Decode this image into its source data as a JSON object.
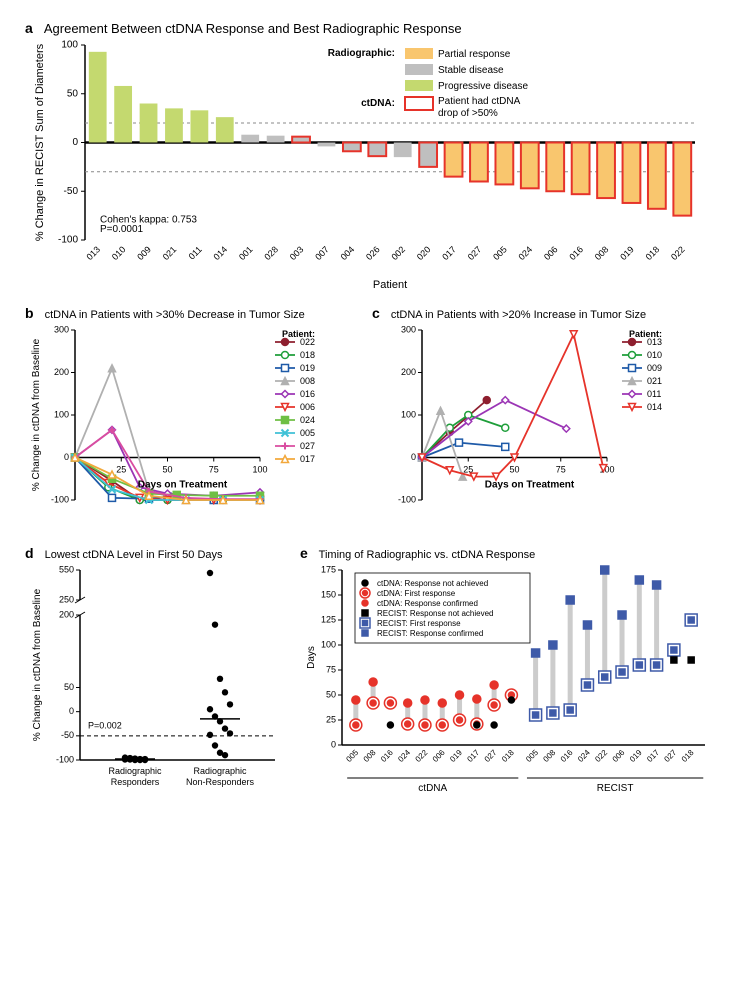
{
  "panel_a": {
    "type": "bar",
    "label": "a",
    "title": "Agreement Between ctDNA Response and Best Radiographic Response",
    "ylabel": "% Change in RECIST Sum of Diameters",
    "xlabel": "Patient",
    "ylim": [
      -100,
      100
    ],
    "ytick_step": 50,
    "ref_lines": [
      20,
      -30
    ],
    "ref_line_color": "#888888",
    "ref_line_dash": "3,3",
    "legend_title_radiographic": "Radiographic:",
    "legend_title_ctdna": "ctDNA:",
    "legend_items": [
      {
        "label": "Partial response",
        "color": "#f9c66e",
        "type": "fill"
      },
      {
        "label": "Stable disease",
        "color": "#bfbfbf",
        "type": "fill"
      },
      {
        "label": "Progressive disease",
        "color": "#c4d96f",
        "type": "fill"
      },
      {
        "label": "Patient had ctDNA drop of >50%",
        "color": "#ffffff",
        "stroke": "#e6332a",
        "type": "outline"
      }
    ],
    "stats_text_1": "Cohen's kappa: 0.753",
    "stats_text_2": "P=0.0001",
    "bars": [
      {
        "patient": "013",
        "value": 93,
        "color": "#c4d96f",
        "ctdna": false
      },
      {
        "patient": "010",
        "value": 58,
        "color": "#c4d96f",
        "ctdna": false
      },
      {
        "patient": "009",
        "value": 40,
        "color": "#c4d96f",
        "ctdna": false
      },
      {
        "patient": "021",
        "value": 35,
        "color": "#c4d96f",
        "ctdna": false
      },
      {
        "patient": "011",
        "value": 33,
        "color": "#c4d96f",
        "ctdna": false
      },
      {
        "patient": "014",
        "value": 26,
        "color": "#c4d96f",
        "ctdna": false
      },
      {
        "patient": "001",
        "value": 8,
        "color": "#bfbfbf",
        "ctdna": false
      },
      {
        "patient": "028",
        "value": 7,
        "color": "#bfbfbf",
        "ctdna": false
      },
      {
        "patient": "003",
        "value": 6,
        "color": "#bfbfbf",
        "ctdna": true
      },
      {
        "patient": "007",
        "value": -4,
        "color": "#bfbfbf",
        "ctdna": false
      },
      {
        "patient": "004",
        "value": -9,
        "color": "#bfbfbf",
        "ctdna": true
      },
      {
        "patient": "026",
        "value": -14,
        "color": "#bfbfbf",
        "ctdna": true
      },
      {
        "patient": "002",
        "value": -15,
        "color": "#bfbfbf",
        "ctdna": false
      },
      {
        "patient": "020",
        "value": -25,
        "color": "#bfbfbf",
        "ctdna": true
      },
      {
        "patient": "017",
        "value": -35,
        "color": "#f9c66e",
        "ctdna": true
      },
      {
        "patient": "027",
        "value": -40,
        "color": "#f9c66e",
        "ctdna": true
      },
      {
        "patient": "005",
        "value": -43,
        "color": "#f9c66e",
        "ctdna": true
      },
      {
        "patient": "024",
        "value": -47,
        "color": "#f9c66e",
        "ctdna": true
      },
      {
        "patient": "006",
        "value": -50,
        "color": "#f9c66e",
        "ctdna": true
      },
      {
        "patient": "016",
        "value": -53,
        "color": "#f9c66e",
        "ctdna": true
      },
      {
        "patient": "008",
        "value": -57,
        "color": "#f9c66e",
        "ctdna": true
      },
      {
        "patient": "019",
        "value": -62,
        "color": "#f9c66e",
        "ctdna": true
      },
      {
        "patient": "018",
        "value": -68,
        "color": "#f9c66e",
        "ctdna": true
      },
      {
        "patient": "022",
        "value": -75,
        "color": "#f9c66e",
        "ctdna": true
      }
    ],
    "outline_color": "#e6332a"
  },
  "panel_b": {
    "type": "line",
    "label": "b",
    "title": "ctDNA in Patients with >30% Decrease in Tumor Size",
    "ylabel": "% Change in ctDNA from Baseline",
    "xlabel": "Days on Treatment",
    "xlim": [
      0,
      100
    ],
    "xtick_step": 25,
    "ylim": [
      -100,
      300
    ],
    "ytick_step": 100,
    "legend_title": "Patient:",
    "series": [
      {
        "id": "022",
        "color": "#8e1f2f",
        "marker": "circle",
        "fill": true,
        "pts": [
          [
            0,
            0
          ],
          [
            20,
            -55
          ],
          [
            35,
            -100
          ],
          [
            50,
            -100
          ],
          [
            75,
            -100
          ],
          [
            100,
            -100
          ]
        ]
      },
      {
        "id": "018",
        "color": "#1e9e3a",
        "marker": "circle",
        "fill": false,
        "pts": [
          [
            0,
            0
          ],
          [
            18,
            -70
          ],
          [
            35,
            -100
          ],
          [
            50,
            -100
          ],
          [
            80,
            -100
          ],
          [
            100,
            -100
          ]
        ]
      },
      {
        "id": "019",
        "color": "#1e5aa8",
        "marker": "square",
        "fill": false,
        "pts": [
          [
            0,
            0
          ],
          [
            20,
            -95
          ],
          [
            40,
            -97
          ],
          [
            50,
            -92
          ],
          [
            75,
            -100
          ],
          [
            100,
            -100
          ]
        ]
      },
      {
        "id": "008",
        "color": "#b0b0b0",
        "marker": "triangle",
        "fill": true,
        "pts": [
          [
            0,
            0
          ],
          [
            20,
            210
          ],
          [
            40,
            -80
          ],
          [
            60,
            -100
          ],
          [
            80,
            -100
          ],
          [
            100,
            -100
          ]
        ]
      },
      {
        "id": "016",
        "color": "#9b35b5",
        "marker": "diamond",
        "fill": false,
        "pts": [
          [
            0,
            0
          ],
          [
            20,
            65
          ],
          [
            35,
            -70
          ],
          [
            50,
            -85
          ],
          [
            75,
            -90
          ],
          [
            100,
            -82
          ]
        ]
      },
      {
        "id": "006",
        "color": "#e6332a",
        "marker": "tri-down",
        "fill": false,
        "pts": [
          [
            0,
            0
          ],
          [
            18,
            -60
          ],
          [
            35,
            -95
          ],
          [
            50,
            -100
          ],
          [
            75,
            -100
          ],
          [
            100,
            -100
          ]
        ]
      },
      {
        "id": "024",
        "color": "#6fbf44",
        "marker": "square",
        "fill": true,
        "pts": [
          [
            0,
            0
          ],
          [
            20,
            -50
          ],
          [
            40,
            -85
          ],
          [
            55,
            -88
          ],
          [
            75,
            -90
          ],
          [
            100,
            -90
          ]
        ]
      },
      {
        "id": "005",
        "color": "#3fc1d6",
        "marker": "x",
        "fill": false,
        "pts": [
          [
            0,
            0
          ],
          [
            20,
            -75
          ],
          [
            40,
            -100
          ],
          [
            60,
            -100
          ],
          [
            80,
            -100
          ],
          [
            100,
            -100
          ]
        ]
      },
      {
        "id": "027",
        "color": "#d94da0",
        "marker": "plus",
        "fill": false,
        "pts": [
          [
            0,
            0
          ],
          [
            20,
            65
          ],
          [
            40,
            -80
          ],
          [
            60,
            -95
          ],
          [
            80,
            -98
          ],
          [
            100,
            -98
          ]
        ]
      },
      {
        "id": "017",
        "color": "#f2a83c",
        "marker": "triangle",
        "fill": false,
        "pts": [
          [
            0,
            0
          ],
          [
            20,
            -40
          ],
          [
            40,
            -90
          ],
          [
            60,
            -100
          ],
          [
            80,
            -100
          ],
          [
            100,
            -100
          ]
        ]
      }
    ]
  },
  "panel_c": {
    "type": "line",
    "label": "c",
    "title": "ctDNA in Patients with >20% Increase in Tumor Size",
    "ylabel": null,
    "xlabel": "Days on Treatment",
    "xlim": [
      0,
      100
    ],
    "xtick_step": 25,
    "ylim": [
      -100,
      300
    ],
    "ytick_step": 100,
    "legend_title": "Patient:",
    "series": [
      {
        "id": "013",
        "color": "#8e1f2f",
        "marker": "circle",
        "fill": true,
        "pts": [
          [
            0,
            0
          ],
          [
            15,
            60
          ],
          [
            35,
            135
          ]
        ]
      },
      {
        "id": "010",
        "color": "#1e9e3a",
        "marker": "circle",
        "fill": false,
        "pts": [
          [
            0,
            0
          ],
          [
            15,
            70
          ],
          [
            25,
            100
          ],
          [
            45,
            70
          ]
        ]
      },
      {
        "id": "009",
        "color": "#1e5aa8",
        "marker": "square",
        "fill": false,
        "pts": [
          [
            0,
            0
          ],
          [
            20,
            35
          ],
          [
            45,
            25
          ]
        ]
      },
      {
        "id": "021",
        "color": "#b0b0b0",
        "marker": "triangle",
        "fill": true,
        "pts": [
          [
            0,
            0
          ],
          [
            10,
            110
          ],
          [
            22,
            -45
          ]
        ]
      },
      {
        "id": "011",
        "color": "#9b35b5",
        "marker": "diamond",
        "fill": false,
        "pts": [
          [
            0,
            0
          ],
          [
            25,
            85
          ],
          [
            45,
            135
          ],
          [
            78,
            68
          ]
        ]
      },
      {
        "id": "014",
        "color": "#e6332a",
        "marker": "tri-down",
        "fill": false,
        "pts": [
          [
            0,
            0
          ],
          [
            15,
            -30
          ],
          [
            28,
            -45
          ],
          [
            40,
            -45
          ],
          [
            50,
            0
          ],
          [
            82,
            290
          ],
          [
            98,
            -25
          ]
        ]
      }
    ]
  },
  "panel_d": {
    "type": "scatter",
    "label": "d",
    "title": "Lowest ctDNA Level in First 50 Days",
    "ylabel": "% Change in ctDNA from Baseline",
    "xlabels": [
      "Radiographic Responders",
      "Radiographic Non-Responders"
    ],
    "ref_line": -50,
    "p_text": "P=0.002",
    "break_low": 200,
    "break_high": 250,
    "ylim_low": [
      -100,
      200
    ],
    "ytick_low": [
      -100,
      -50,
      0,
      50,
      200
    ],
    "ylim_high": [
      250,
      550
    ],
    "ytick_high": [
      250,
      550
    ],
    "groups": [
      {
        "x": 1,
        "vals": [
          -95,
          -96,
          -97,
          -98,
          -98,
          -99,
          -99,
          -100,
          -100,
          -100
        ],
        "median": -98
      },
      {
        "x": 2,
        "vals": [
          520,
          180,
          68,
          40,
          15,
          5,
          -10,
          -20,
          -35,
          -45,
          -48,
          -70,
          -85,
          -90
        ],
        "median": -15
      }
    ],
    "point_color": "#000000"
  },
  "panel_e": {
    "type": "range",
    "label": "e",
    "title": "Timing of Radiographic vs. ctDNA Response",
    "ylabel": "Days",
    "ylim": [
      0,
      175
    ],
    "ytick_step": 25,
    "group_labels": [
      "ctDNA",
      "RECIST"
    ],
    "legend": [
      {
        "label": "ctDNA: Response not achieved",
        "shape": "circle",
        "color": "#000000",
        "fill": true,
        "outline": false
      },
      {
        "label": "ctDNA: First response",
        "shape": "circle",
        "color": "#e6332a",
        "fill": false,
        "outline": true
      },
      {
        "label": "ctDNA: Response confirmed",
        "shape": "circle",
        "color": "#e6332a",
        "fill": true,
        "outline": false
      },
      {
        "label": "RECIST: Response not achieved",
        "shape": "square",
        "color": "#000000",
        "fill": true,
        "outline": false
      },
      {
        "label": "RECIST: First response",
        "shape": "square",
        "color": "#3e5aa8",
        "fill": false,
        "outline": true
      },
      {
        "label": "RECIST: Response confirmed",
        "shape": "square",
        "color": "#3e5aa8",
        "fill": true,
        "outline": false
      }
    ],
    "patients": [
      "005",
      "008",
      "016",
      "024",
      "022",
      "006",
      "019",
      "017",
      "027",
      "018"
    ],
    "ctdna": [
      {
        "low": 20,
        "high": 45,
        "first": 20
      },
      {
        "low": 42,
        "high": 63,
        "first": 42
      },
      {
        "low": 42,
        "high": 42,
        "first": 42,
        "black": 20
      },
      {
        "low": 21,
        "high": 42,
        "first": 21
      },
      {
        "low": 20,
        "high": 45,
        "first": 20
      },
      {
        "low": 20,
        "high": 42,
        "first": 20
      },
      {
        "low": 25,
        "high": 50,
        "first": 25
      },
      {
        "low": 21,
        "high": 46,
        "first": 21,
        "black": 20
      },
      {
        "low": 40,
        "high": 60,
        "first": 40,
        "black": 20
      },
      {
        "low": 50,
        "high": 50,
        "first": 50,
        "black": 45
      }
    ],
    "recist": [
      {
        "low": 30,
        "high": 92,
        "first": 30
      },
      {
        "low": 32,
        "high": 100,
        "first": 32
      },
      {
        "low": 35,
        "high": 145,
        "first": 35
      },
      {
        "low": 60,
        "high": 120,
        "first": 60
      },
      {
        "low": 68,
        "high": 175,
        "first": 68
      },
      {
        "low": 73,
        "high": 130,
        "first": 73
      },
      {
        "low": 80,
        "high": 165,
        "first": 80
      },
      {
        "low": 80,
        "high": 160,
        "first": 80
      },
      {
        "low": 95,
        "high": 95,
        "first": 95,
        "black": 85
      },
      {
        "low": 125,
        "high": 125,
        "first": 125,
        "black": 85
      }
    ],
    "bar_color": "#cccccc",
    "ctdna_color": "#e6332a",
    "recist_color": "#3e5aa8"
  }
}
